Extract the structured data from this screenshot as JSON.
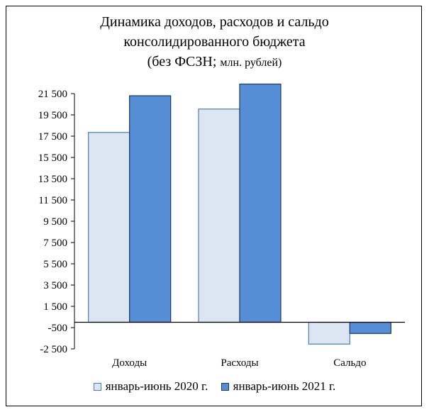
{
  "chart_data": {
    "type": "bar",
    "title_lines": [
      "Динамика доходов, расходов и сальдо",
      "консолидированного бюджета"
    ],
    "title_line3_main": "(без ФСЗН; ",
    "title_line3_small": "млн. рублей)",
    "categories": [
      "Доходы",
      "Расходы",
      "Сальдо"
    ],
    "series": [
      {
        "name": "январь-июнь 2020 г.",
        "values": [
          17850,
          20050,
          -2050
        ],
        "fill": "#dce6f2",
        "stroke": "#4a7ebb"
      },
      {
        "name": "январь-июнь 2021 г.",
        "values": [
          21300,
          22400,
          -1050
        ],
        "fill": "#558ed5",
        "stroke": "#1f3864"
      }
    ],
    "y_ticks": [
      21500,
      19500,
      17500,
      15500,
      13500,
      11500,
      9500,
      7500,
      5500,
      3500,
      1500,
      -500,
      -2500
    ],
    "y_tick_labels": [
      "21 500",
      "19 500",
      "17 500",
      "15 500",
      "13 500",
      "11 500",
      "9 500",
      "7 500",
      "5 500",
      "3 500",
      "1 500",
      "-500",
      "-2 500"
    ],
    "ylim": [
      -2500,
      21500
    ],
    "grid": false,
    "legend_position": "bottom"
  }
}
